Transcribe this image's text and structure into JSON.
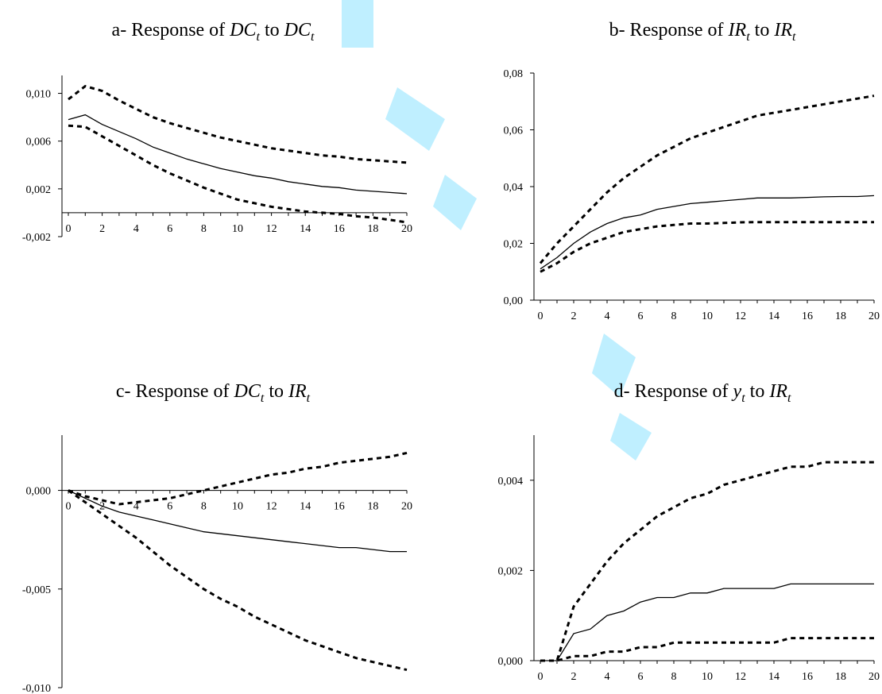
{
  "chart_data": [
    {
      "type": "line",
      "title": {
        "prefix": "a- Response of ",
        "var1": "DC",
        "sub1": "t",
        "mid": " to ",
        "var2": "DC",
        "sub2": "t"
      },
      "x": [
        0,
        1,
        2,
        3,
        4,
        5,
        6,
        7,
        8,
        9,
        10,
        11,
        12,
        13,
        14,
        15,
        16,
        17,
        18,
        19,
        20
      ],
      "xticks": [
        0,
        2,
        4,
        6,
        8,
        10,
        12,
        14,
        16,
        18,
        20
      ],
      "yticks": [
        {
          "v": -0.002,
          "label": "-0,002"
        },
        {
          "v": 0.002,
          "label": "0,002"
        },
        {
          "v": 0.006,
          "label": "0,006"
        },
        {
          "v": 0.01,
          "label": "0,010"
        }
      ],
      "ylim": [
        -0.002,
        0.0115
      ],
      "series": [
        {
          "style": "solid",
          "values": [
            0.0078,
            0.0082,
            0.0074,
            0.0068,
            0.0062,
            0.0055,
            0.005,
            0.0045,
            0.0041,
            0.0037,
            0.0034,
            0.0031,
            0.0029,
            0.0026,
            0.0024,
            0.0022,
            0.0021,
            0.0019,
            0.0018,
            0.0017,
            0.0016
          ]
        },
        {
          "style": "dashed",
          "values": [
            0.0095,
            0.0106,
            0.0102,
            0.0094,
            0.0087,
            0.008,
            0.0075,
            0.0071,
            0.0067,
            0.0063,
            0.006,
            0.0057,
            0.0054,
            0.0052,
            0.005,
            0.0048,
            0.0047,
            0.0045,
            0.0044,
            0.0043,
            0.0042
          ]
        },
        {
          "style": "dashed",
          "values": [
            0.0073,
            0.0072,
            0.0064,
            0.0056,
            0.0048,
            0.004,
            0.0033,
            0.0027,
            0.0021,
            0.0016,
            0.0011,
            0.0008,
            0.0005,
            0.0003,
            0.0001,
            0.0,
            -0.0001,
            -0.0003,
            -0.0004,
            -0.0006,
            -0.0008
          ]
        }
      ]
    },
    {
      "type": "line",
      "title": {
        "prefix": "b- Response of ",
        "var1": "IR",
        "sub1": "t",
        "mid": " to ",
        "var2": "IR",
        "sub2": "t"
      },
      "x": [
        0,
        1,
        2,
        3,
        4,
        5,
        6,
        7,
        8,
        9,
        10,
        11,
        12,
        13,
        14,
        15,
        16,
        17,
        18,
        19,
        20
      ],
      "xticks": [
        0,
        2,
        4,
        6,
        8,
        10,
        12,
        14,
        16,
        18,
        20
      ],
      "yticks": [
        {
          "v": 0.0,
          "label": "0,00"
        },
        {
          "v": 0.02,
          "label": "0,02"
        },
        {
          "v": 0.04,
          "label": "0,04"
        },
        {
          "v": 0.06,
          "label": "0,06"
        },
        {
          "v": 0.08,
          "label": "0,08"
        }
      ],
      "ylim": [
        0.0,
        0.08
      ],
      "series": [
        {
          "style": "solid",
          "values": [
            0.011,
            0.015,
            0.02,
            0.024,
            0.027,
            0.029,
            0.03,
            0.032,
            0.033,
            0.034,
            0.0345,
            0.035,
            0.0355,
            0.036,
            0.036,
            0.036,
            0.0362,
            0.0364,
            0.0365,
            0.0365,
            0.0368
          ]
        },
        {
          "style": "dashed",
          "values": [
            0.013,
            0.02,
            0.026,
            0.032,
            0.038,
            0.043,
            0.047,
            0.051,
            0.054,
            0.057,
            0.059,
            0.061,
            0.063,
            0.065,
            0.066,
            0.067,
            0.068,
            0.069,
            0.07,
            0.071,
            0.072
          ]
        },
        {
          "style": "dashed",
          "values": [
            0.01,
            0.013,
            0.017,
            0.02,
            0.022,
            0.024,
            0.025,
            0.026,
            0.0265,
            0.027,
            0.027,
            0.0272,
            0.0274,
            0.0275,
            0.0275,
            0.0275,
            0.0275,
            0.0275,
            0.0275,
            0.0275,
            0.0275
          ]
        }
      ]
    },
    {
      "type": "line",
      "title": {
        "prefix": "c- Response of ",
        "var1": "DC",
        "sub1": "t",
        "mid": " to ",
        "var2": "IR",
        "sub2": "t"
      },
      "x": [
        0,
        1,
        2,
        3,
        4,
        5,
        6,
        7,
        8,
        9,
        10,
        11,
        12,
        13,
        14,
        15,
        16,
        17,
        18,
        19,
        20
      ],
      "xticks": [
        0,
        2,
        4,
        6,
        8,
        10,
        12,
        14,
        16,
        18,
        20
      ],
      "yticks": [
        {
          "v": -0.01,
          "label": "-0,010"
        },
        {
          "v": -0.005,
          "label": "-0,005"
        },
        {
          "v": 0.0,
          "label": "0,000"
        }
      ],
      "ylim": [
        -0.01,
        0.0028
      ],
      "series": [
        {
          "style": "solid",
          "values": [
            0.0,
            -0.0004,
            -0.0008,
            -0.0011,
            -0.0013,
            -0.0015,
            -0.0017,
            -0.0019,
            -0.0021,
            -0.0022,
            -0.0023,
            -0.0024,
            -0.0025,
            -0.0026,
            -0.0027,
            -0.0028,
            -0.0029,
            -0.0029,
            -0.003,
            -0.0031,
            -0.0031
          ]
        },
        {
          "style": "dashed",
          "values": [
            0.0,
            -0.0003,
            -0.0005,
            -0.0007,
            -0.0006,
            -0.0005,
            -0.0004,
            -0.0002,
            0.0,
            0.0002,
            0.0004,
            0.0006,
            0.0008,
            0.0009,
            0.0011,
            0.0012,
            0.0014,
            0.0015,
            0.0016,
            0.0017,
            0.0019
          ]
        },
        {
          "style": "dashed",
          "values": [
            0.0,
            -0.0006,
            -0.0012,
            -0.0018,
            -0.0024,
            -0.0031,
            -0.0038,
            -0.0044,
            -0.005,
            -0.0055,
            -0.0059,
            -0.0064,
            -0.0068,
            -0.0072,
            -0.0076,
            -0.0079,
            -0.0082,
            -0.0085,
            -0.0087,
            -0.0089,
            -0.0091
          ]
        }
      ]
    },
    {
      "type": "line",
      "title": {
        "prefix": "d- Response of ",
        "var1": "y",
        "sub1": "t",
        "mid": " to ",
        "var2": "IR",
        "sub2": "t"
      },
      "x": [
        0,
        1,
        2,
        3,
        4,
        5,
        6,
        7,
        8,
        9,
        10,
        11,
        12,
        13,
        14,
        15,
        16,
        17,
        18,
        19,
        20
      ],
      "xticks": [
        0,
        2,
        4,
        6,
        8,
        10,
        12,
        14,
        16,
        18,
        20
      ],
      "yticks": [
        {
          "v": 0.0,
          "label": "0,000"
        },
        {
          "v": 0.002,
          "label": "0,002"
        },
        {
          "v": 0.004,
          "label": "0,004"
        }
      ],
      "ylim": [
        0.0,
        0.005
      ],
      "series": [
        {
          "style": "solid",
          "values": [
            0.0,
            0.0,
            0.0006,
            0.0007,
            0.001,
            0.0011,
            0.0013,
            0.0014,
            0.0014,
            0.0015,
            0.0015,
            0.0016,
            0.0016,
            0.0016,
            0.0016,
            0.0017,
            0.0017,
            0.0017,
            0.0017,
            0.0017,
            0.0017
          ]
        },
        {
          "style": "dashed",
          "values": [
            0.0,
            0.0,
            0.0012,
            0.0017,
            0.0022,
            0.0026,
            0.0029,
            0.0032,
            0.0034,
            0.0036,
            0.0037,
            0.0039,
            0.004,
            0.0041,
            0.0042,
            0.0043,
            0.0043,
            0.0044,
            0.0044,
            0.0044,
            0.0044
          ]
        },
        {
          "style": "dashed",
          "values": [
            0.0,
            0.0,
            0.0001,
            0.0001,
            0.0002,
            0.0002,
            0.0003,
            0.0003,
            0.0004,
            0.0004,
            0.0004,
            0.0004,
            0.0004,
            0.0004,
            0.0004,
            0.0005,
            0.0005,
            0.0005,
            0.0005,
            0.0005,
            0.0005
          ]
        }
      ]
    }
  ]
}
